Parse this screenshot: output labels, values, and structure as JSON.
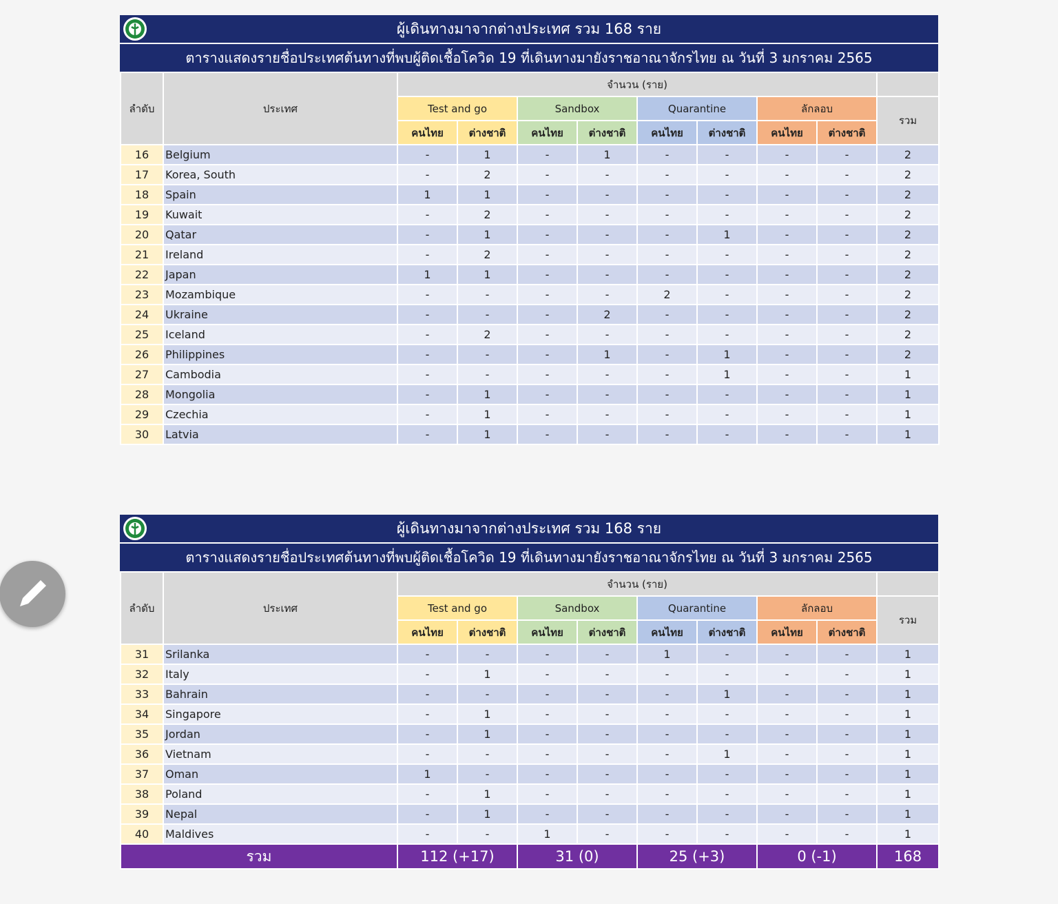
{
  "tables": [
    {
      "title": "ผู้เดินทางมาจากต่างประเทศ รวม 168 ราย",
      "subtitle": "ตารางแสดงรายชื่อประเทศต้นทางที่พบผู้ติดเชื้อโควิด 19 ที่เดินทางมายังราชอาณาจักรไทย ณ วันที่ 3 มกราคม 2565",
      "header": {
        "order": "ลำดับ",
        "country": "ประเทศ",
        "unit": "จำนวน (ราย)",
        "total": "รวม",
        "groups": [
          "Test and go",
          "Sandbox",
          "Quarantine",
          "ลักลอบ"
        ],
        "subgroups": [
          "คนไทย",
          "ต่างชาติ",
          "คนไทย",
          "ต่างชาติ",
          "คนไทย",
          "ต่างชาติ",
          "คนไทย",
          "ต่างชาติ"
        ]
      },
      "rows": [
        [
          "16",
          "Belgium",
          "-",
          "1",
          "-",
          "1",
          "-",
          "-",
          "-",
          "-",
          "2"
        ],
        [
          "17",
          "Korea, South",
          "-",
          "2",
          "-",
          "-",
          "-",
          "-",
          "-",
          "-",
          "2"
        ],
        [
          "18",
          "Spain",
          "1",
          "1",
          "-",
          "-",
          "-",
          "-",
          "-",
          "-",
          "2"
        ],
        [
          "19",
          "Kuwait",
          "-",
          "2",
          "-",
          "-",
          "-",
          "-",
          "-",
          "-",
          "2"
        ],
        [
          "20",
          "Qatar",
          "-",
          "1",
          "-",
          "-",
          "-",
          "1",
          "-",
          "-",
          "2"
        ],
        [
          "21",
          "Ireland",
          "-",
          "2",
          "-",
          "-",
          "-",
          "-",
          "-",
          "-",
          "2"
        ],
        [
          "22",
          "Japan",
          "1",
          "1",
          "-",
          "-",
          "-",
          "-",
          "-",
          "-",
          "2"
        ],
        [
          "23",
          "Mozambique",
          "-",
          "-",
          "-",
          "-",
          "2",
          "-",
          "-",
          "-",
          "2"
        ],
        [
          "24",
          "Ukraine",
          "-",
          "-",
          "-",
          "2",
          "-",
          "-",
          "-",
          "-",
          "2"
        ],
        [
          "25",
          "Iceland",
          "-",
          "2",
          "-",
          "-",
          "-",
          "-",
          "-",
          "-",
          "2"
        ],
        [
          "26",
          "Philippines",
          "-",
          "-",
          "-",
          "1",
          "-",
          "1",
          "-",
          "-",
          "2"
        ],
        [
          "27",
          "Cambodia",
          "-",
          "-",
          "-",
          "-",
          "-",
          "1",
          "-",
          "-",
          "1"
        ],
        [
          "28",
          "Mongolia",
          "-",
          "1",
          "-",
          "-",
          "-",
          "-",
          "-",
          "-",
          "1"
        ],
        [
          "29",
          "Czechia",
          "-",
          "1",
          "-",
          "-",
          "-",
          "-",
          "-",
          "-",
          "1"
        ],
        [
          "30",
          "Latvia",
          "-",
          "1",
          "-",
          "-",
          "-",
          "-",
          "-",
          "-",
          "1"
        ]
      ]
    },
    {
      "title": "ผู้เดินทางมาจากต่างประเทศ รวม 168 ราย",
      "subtitle": "ตารางแสดงรายชื่อประเทศต้นทางที่พบผู้ติดเชื้อโควิด 19 ที่เดินทางมายังราชอาณาจักรไทย ณ วันที่ 3 มกราคม 2565",
      "header": {
        "order": "ลำดับ",
        "country": "ประเทศ",
        "unit": "จำนวน (ราย)",
        "total": "รวม",
        "groups": [
          "Test and go",
          "Sandbox",
          "Quarantine",
          "ลักลอบ"
        ],
        "subgroups": [
          "คนไทย",
          "ต่างชาติ",
          "คนไทย",
          "ต่างชาติ",
          "คนไทย",
          "ต่างชาติ",
          "คนไทย",
          "ต่างชาติ"
        ]
      },
      "rows": [
        [
          "31",
          "Srilanka",
          "-",
          "-",
          "-",
          "-",
          "1",
          "-",
          "-",
          "-",
          "1"
        ],
        [
          "32",
          "Italy",
          "-",
          "1",
          "-",
          "-",
          "-",
          "-",
          "-",
          "-",
          "1"
        ],
        [
          "33",
          "Bahrain",
          "-",
          "-",
          "-",
          "-",
          "-",
          "1",
          "-",
          "-",
          "1"
        ],
        [
          "34",
          "Singapore",
          "-",
          "1",
          "-",
          "-",
          "-",
          "-",
          "-",
          "-",
          "1"
        ],
        [
          "35",
          "Jordan",
          "-",
          "1",
          "-",
          "-",
          "-",
          "-",
          "-",
          "-",
          "1"
        ],
        [
          "36",
          "Vietnam",
          "-",
          "-",
          "-",
          "-",
          "-",
          "1",
          "-",
          "-",
          "1"
        ],
        [
          "37",
          "Oman",
          "1",
          "-",
          "-",
          "-",
          "-",
          "-",
          "-",
          "-",
          "1"
        ],
        [
          "38",
          "Poland",
          "-",
          "1",
          "-",
          "-",
          "-",
          "-",
          "-",
          "-",
          "1"
        ],
        [
          "39",
          "Nepal",
          "-",
          "1",
          "-",
          "-",
          "-",
          "-",
          "-",
          "-",
          "1"
        ],
        [
          "40",
          "Maldives",
          "-",
          "-",
          "1",
          "-",
          "-",
          "-",
          "-",
          "-",
          "1"
        ]
      ],
      "total": {
        "label": "รวม",
        "values": [
          "112 (+17)",
          "31 (0)",
          "25 (+3)",
          "0 (-1)",
          "168"
        ]
      }
    }
  ]
}
